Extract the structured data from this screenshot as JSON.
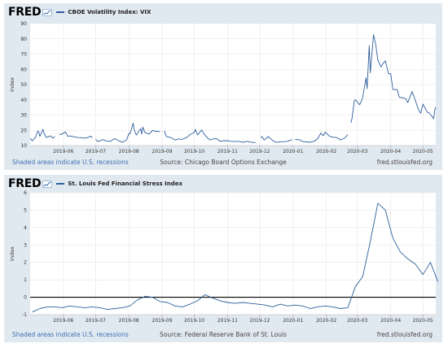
{
  "brand": {
    "logo_text": "FRED",
    "accent": "#2f5f9e"
  },
  "panels": [
    {
      "title": "CBOE Volatility Index: VIX",
      "source": "Source: Chicago Board Options Exchange",
      "recession_note": "Shaded areas indicate U.S. recessions",
      "site": "fred.stlouisfed.org"
    },
    {
      "title": "St. Louis Fed Financial Stress Index",
      "source": "Source: Federal Reserve Bank of St. Louis",
      "recession_note": "Shaded areas indicate U.S. recessions",
      "site": "fred.stlouisfed.org"
    }
  ],
  "chart_data": [
    {
      "type": "line",
      "title": "CBOE Volatility Index: VIX",
      "ylabel": "Index",
      "ylim": [
        10,
        90
      ],
      "yticks": [
        10,
        20,
        30,
        40,
        50,
        60,
        70,
        80,
        90
      ],
      "xlim": [
        "2019-05-01",
        "2020-05-13"
      ],
      "xticks": [
        {
          "date": "2019-06-01",
          "label": "2019-06"
        },
        {
          "date": "2019-07-01",
          "label": "2019-07"
        },
        {
          "date": "2019-08-01",
          "label": "2019-08"
        },
        {
          "date": "2019-09-01",
          "label": "2019-09"
        },
        {
          "date": "2019-10-01",
          "label": "2019-10"
        },
        {
          "date": "2019-11-01",
          "label": "2019-11"
        },
        {
          "date": "2019-12-01",
          "label": "2019-12"
        },
        {
          "date": "2020-01-01",
          "label": "2020-01"
        },
        {
          "date": "2020-02-01",
          "label": "2020-02"
        },
        {
          "date": "2020-03-01",
          "label": "2020-03"
        },
        {
          "date": "2020-04-01",
          "label": "2020-04"
        },
        {
          "date": "2020-05-01",
          "label": "2020-05"
        }
      ],
      "grid": true,
      "color": "#2f5f9e",
      "series": [
        {
          "segments": [
            [
              [
                "2019-05-01",
                14.8
              ],
              [
                "2019-05-03",
                13.1
              ],
              [
                "2019-05-06",
                15.4
              ],
              [
                "2019-05-08",
                19.4
              ],
              [
                "2019-05-09",
                19.1
              ],
              [
                "2019-05-10",
                16.0
              ],
              [
                "2019-05-13",
                20.6
              ],
              [
                "2019-05-14",
                18.1
              ],
              [
                "2019-05-16",
                15.3
              ],
              [
                "2019-05-20",
                16.3
              ],
              [
                "2019-05-22",
                14.8
              ],
              [
                "2019-05-24",
                15.9
              ]
            ],
            [
              [
                "2019-05-28",
                17.5
              ],
              [
                "2019-05-30",
                17.3
              ],
              [
                "2019-06-03",
                18.9
              ],
              [
                "2019-06-05",
                16.1
              ],
              [
                "2019-06-07",
                16.3
              ],
              [
                "2019-06-10",
                15.9
              ],
              [
                "2019-06-14",
                15.3
              ],
              [
                "2019-06-18",
                15.2
              ],
              [
                "2019-06-20",
                14.8
              ],
              [
                "2019-06-24",
                15.3
              ],
              [
                "2019-06-26",
                16.2
              ],
              [
                "2019-06-28",
                15.1
              ]
            ],
            [
              [
                "2019-07-01",
                14.1
              ],
              [
                "2019-07-03",
                12.6
              ],
              [
                "2019-07-08",
                13.9
              ],
              [
                "2019-07-11",
                13.0
              ],
              [
                "2019-07-15",
                12.7
              ],
              [
                "2019-07-17",
                13.9
              ],
              [
                "2019-07-19",
                14.5
              ],
              [
                "2019-07-23",
                13.0
              ],
              [
                "2019-07-26",
                12.2
              ],
              [
                "2019-07-30",
                13.9
              ],
              [
                "2019-08-01",
                17.9
              ],
              [
                "2019-08-02",
                17.6
              ],
              [
                "2019-08-05",
                24.6
              ],
              [
                "2019-08-06",
                20.2
              ],
              [
                "2019-08-08",
                16.9
              ],
              [
                "2019-08-12",
                21.1
              ],
              [
                "2019-08-13",
                17.5
              ],
              [
                "2019-08-14",
                22.1
              ],
              [
                "2019-08-16",
                18.5
              ],
              [
                "2019-08-20",
                17.5
              ],
              [
                "2019-08-23",
                19.9
              ],
              [
                "2019-08-26",
                19.3
              ],
              [
                "2019-08-28",
                19.4
              ],
              [
                "2019-08-30",
                19.0
              ]
            ],
            [
              [
                "2019-09-03",
                19.7
              ],
              [
                "2019-09-05",
                15.8
              ],
              [
                "2019-09-09",
                15.3
              ],
              [
                "2019-09-11",
                14.6
              ],
              [
                "2019-09-13",
                13.7
              ],
              [
                "2019-09-17",
                14.4
              ],
              [
                "2019-09-19",
                14.0
              ],
              [
                "2019-09-23",
                14.9
              ],
              [
                "2019-09-25",
                15.9
              ],
              [
                "2019-09-27",
                17.2
              ],
              [
                "2019-10-01",
                18.6
              ],
              [
                "2019-10-02",
                20.6
              ],
              [
                "2019-10-04",
                17.0
              ],
              [
                "2019-10-08",
                20.3
              ],
              [
                "2019-10-10",
                17.6
              ],
              [
                "2019-10-14",
                14.6
              ],
              [
                "2019-10-16",
                13.7
              ],
              [
                "2019-10-18",
                14.3
              ],
              [
                "2019-10-22",
                14.5
              ],
              [
                "2019-10-25",
                12.7
              ],
              [
                "2019-10-29",
                13.2
              ],
              [
                "2019-10-31",
                13.2
              ],
              [
                "2019-11-04",
                12.8
              ],
              [
                "2019-11-07",
                12.7
              ],
              [
                "2019-11-12",
                12.7
              ],
              [
                "2019-11-15",
                12.1
              ],
              [
                "2019-11-20",
                12.8
              ],
              [
                "2019-11-22",
                12.3
              ],
              [
                "2019-11-27",
                11.8
              ]
            ],
            [
              [
                "2019-12-02",
                14.9
              ],
              [
                "2019-12-03",
                15.9
              ],
              [
                "2019-12-05",
                13.6
              ],
              [
                "2019-12-09",
                15.9
              ],
              [
                "2019-12-12",
                13.9
              ],
              [
                "2019-12-16",
                12.1
              ],
              [
                "2019-12-20",
                12.5
              ],
              [
                "2019-12-26",
                12.6
              ],
              [
                "2019-12-31",
                13.8
              ]
            ],
            [
              [
                "2020-01-03",
                14.0
              ],
              [
                "2020-01-07",
                13.8
              ],
              [
                "2020-01-10",
                12.6
              ],
              [
                "2020-01-14",
                12.4
              ],
              [
                "2020-01-17",
                12.1
              ],
              [
                "2020-01-21",
                12.9
              ],
              [
                "2020-01-24",
                14.6
              ],
              [
                "2020-01-27",
                18.2
              ],
              [
                "2020-01-29",
                16.4
              ],
              [
                "2020-01-31",
                18.8
              ],
              [
                "2020-02-04",
                16.1
              ],
              [
                "2020-02-07",
                15.5
              ],
              [
                "2020-02-11",
                15.2
              ],
              [
                "2020-02-14",
                13.7
              ],
              [
                "2020-02-18",
                14.8
              ],
              [
                "2020-02-21",
                17.1
              ]
            ],
            [
              [
                "2020-02-24",
                25.0
              ],
              [
                "2020-02-25",
                27.9
              ],
              [
                "2020-02-27",
                39.2
              ],
              [
                "2020-02-28",
                40.1
              ],
              [
                "2020-03-03",
                36.8
              ],
              [
                "2020-03-05",
                39.6
              ],
              [
                "2020-03-06",
                41.9
              ],
              [
                "2020-03-09",
                54.5
              ],
              [
                "2020-03-10",
                47.3
              ],
              [
                "2020-03-12",
                75.5
              ],
              [
                "2020-03-13",
                57.8
              ],
              [
                "2020-03-16",
                82.7
              ],
              [
                "2020-03-18",
                76.5
              ],
              [
                "2020-03-20",
                66.0
              ],
              [
                "2020-03-23",
                61.6
              ],
              [
                "2020-03-25",
                63.9
              ],
              [
                "2020-03-27",
                65.5
              ],
              [
                "2020-03-30",
                57.1
              ],
              [
                "2020-04-01",
                57.1
              ],
              [
                "2020-04-03",
                46.8
              ],
              [
                "2020-04-07",
                46.7
              ],
              [
                "2020-04-09",
                41.7
              ],
              [
                "2020-04-13",
                41.2
              ],
              [
                "2020-04-15",
                40.8
              ],
              [
                "2020-04-17",
                38.2
              ],
              [
                "2020-04-21",
                45.4
              ],
              [
                "2020-04-23",
                41.4
              ],
              [
                "2020-04-27",
                33.3
              ],
              [
                "2020-04-29",
                31.2
              ],
              [
                "2020-05-01",
                37.2
              ],
              [
                "2020-05-05",
                31.9
              ],
              [
                "2020-05-07",
                31.4
              ],
              [
                "2020-05-11",
                27.6
              ],
              [
                "2020-05-12",
                33.0
              ],
              [
                "2020-05-13",
                35.3
              ]
            ]
          ]
        }
      ]
    },
    {
      "type": "line",
      "title": "St. Louis Fed Financial Stress Index",
      "ylabel": "Index",
      "ylim": [
        -1,
        6
      ],
      "yticks": [
        -1,
        0,
        1,
        2,
        3,
        4,
        5,
        6
      ],
      "zero_line": true,
      "xlim": [
        "2019-05-01",
        "2020-05-13"
      ],
      "xticks": [
        {
          "date": "2019-06-01",
          "label": "2019-06"
        },
        {
          "date": "2019-07-01",
          "label": "2019-07"
        },
        {
          "date": "2019-08-01",
          "label": "2019-08"
        },
        {
          "date": "2019-09-01",
          "label": "2019-09"
        },
        {
          "date": "2019-10-01",
          "label": "2019-10"
        },
        {
          "date": "2019-11-01",
          "label": "2019-11"
        },
        {
          "date": "2019-12-01",
          "label": "2019-12"
        },
        {
          "date": "2020-01-01",
          "label": "2020-01"
        },
        {
          "date": "2020-02-01",
          "label": "2020-02"
        },
        {
          "date": "2020-03-01",
          "label": "2020-03"
        },
        {
          "date": "2020-04-01",
          "label": "2020-04"
        },
        {
          "date": "2020-05-01",
          "label": "2020-05"
        }
      ],
      "grid": true,
      "color": "#2f5f9e",
      "series": [
        {
          "segments": [
            [
              [
                "2019-05-03",
                -0.85
              ],
              [
                "2019-05-10",
                -0.65
              ],
              [
                "2019-05-17",
                -0.55
              ],
              [
                "2019-05-24",
                -0.55
              ],
              [
                "2019-05-31",
                -0.6
              ],
              [
                "2019-06-07",
                -0.5
              ],
              [
                "2019-06-14",
                -0.55
              ],
              [
                "2019-06-21",
                -0.6
              ],
              [
                "2019-06-28",
                -0.55
              ],
              [
                "2019-07-05",
                -0.6
              ],
              [
                "2019-07-12",
                -0.7
              ],
              [
                "2019-07-19",
                -0.65
              ],
              [
                "2019-07-26",
                -0.6
              ],
              [
                "2019-08-02",
                -0.5
              ],
              [
                "2019-08-09",
                -0.15
              ],
              [
                "2019-08-16",
                0.05
              ],
              [
                "2019-08-23",
                0.0
              ],
              [
                "2019-08-30",
                -0.25
              ],
              [
                "2019-09-06",
                -0.3
              ],
              [
                "2019-09-13",
                -0.5
              ],
              [
                "2019-09-20",
                -0.55
              ],
              [
                "2019-09-27",
                -0.4
              ],
              [
                "2019-10-04",
                -0.2
              ],
              [
                "2019-10-11",
                0.15
              ],
              [
                "2019-10-18",
                -0.05
              ],
              [
                "2019-10-25",
                -0.2
              ],
              [
                "2019-11-01",
                -0.3
              ],
              [
                "2019-11-08",
                -0.35
              ],
              [
                "2019-11-15",
                -0.3
              ],
              [
                "2019-11-22",
                -0.35
              ],
              [
                "2019-11-29",
                -0.4
              ],
              [
                "2019-12-06",
                -0.45
              ],
              [
                "2019-12-13",
                -0.55
              ],
              [
                "2019-12-20",
                -0.4
              ],
              [
                "2019-12-27",
                -0.5
              ],
              [
                "2020-01-03",
                -0.45
              ],
              [
                "2020-01-10",
                -0.5
              ],
              [
                "2020-01-17",
                -0.65
              ],
              [
                "2020-01-24",
                -0.55
              ],
              [
                "2020-01-31",
                -0.5
              ],
              [
                "2020-02-07",
                -0.55
              ],
              [
                "2020-02-14",
                -0.65
              ],
              [
                "2020-02-21",
                -0.6
              ],
              [
                "2020-02-28",
                0.6
              ],
              [
                "2020-03-06",
                1.2
              ],
              [
                "2020-03-13",
                3.2
              ],
              [
                "2020-03-20",
                5.4
              ],
              [
                "2020-03-27",
                5.0
              ],
              [
                "2020-04-03",
                3.4
              ],
              [
                "2020-04-10",
                2.6
              ],
              [
                "2020-04-17",
                2.2
              ],
              [
                "2020-04-24",
                1.9
              ],
              [
                "2020-05-01",
                1.3
              ],
              [
                "2020-05-08",
                2.0
              ],
              [
                "2020-05-15",
                0.9
              ]
            ]
          ]
        }
      ]
    }
  ]
}
